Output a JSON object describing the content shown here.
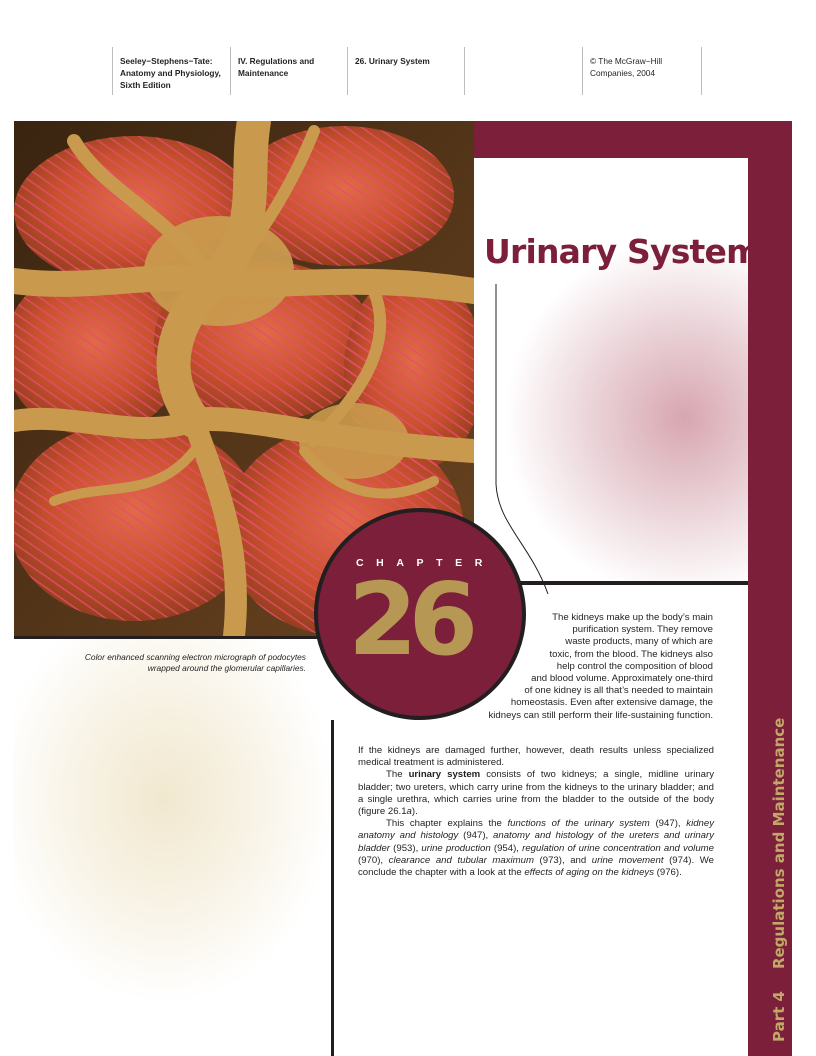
{
  "header": {
    "col1": [
      "Seeley−Stephens−Tate:",
      "Anatomy and Physiology,",
      "Sixth Edition"
    ],
    "col2": [
      "IV. Regulations and",
      "Maintenance"
    ],
    "col3": "26. Urinary System",
    "col4": "",
    "col5": [
      "© The McGraw−Hill",
      "Companies, 2004"
    ]
  },
  "chapter": {
    "title": "Urinary System",
    "label": "CHAPTER",
    "number": "26"
  },
  "caption": "Color enhanced scanning electron micrograph of podocytes wrapped around the glomerular capillaries.",
  "sidebar": {
    "part": "Part 4",
    "section": "Regulations and Maintenance"
  },
  "intro_lines": [
    "The kidneys make up the body’s main",
    "purification system. They remove",
    "waste products, many of which are",
    "toxic, from the blood. The kidneys also",
    "help control the composition of blood",
    "and blood volume. Approximately one-third",
    "of one kidney is all that’s needed to maintain",
    "homeostasis. Even after extensive damage, the",
    "kidneys can still perform their life-sustaining function."
  ],
  "para1_rest": "If the kidneys are damaged further, however, death results unless specialized medical treatment is administered.",
  "para2": {
    "pre": "The ",
    "term": "urinary system",
    "text": " consists of two kidneys; a single, midline urinary bladder; two ureters, which carry urine from the kidneys to the urinary bladder; and a single urethra, which carries urine from the bladder to the outside of the body (figure 26.1",
    "fig_letter": "a",
    "end": ")."
  },
  "para3": [
    {
      "t": "This chapter explains the ",
      "i": false
    },
    {
      "t": "functions of the urinary system",
      "i": true
    },
    {
      "t": " (947), ",
      "i": false
    },
    {
      "t": "kidney anatomy and histology",
      "i": true
    },
    {
      "t": " (947), ",
      "i": false
    },
    {
      "t": "anatomy and histology of the ureters and urinary bladder",
      "i": true
    },
    {
      "t": " (953), ",
      "i": false
    },
    {
      "t": "urine production",
      "i": true
    },
    {
      "t": " (954), ",
      "i": false
    },
    {
      "t": "regulation of urine concentration and volume",
      "i": true
    },
    {
      "t": " (970), ",
      "i": false
    },
    {
      "t": "clearance and tubular maximum",
      "i": true
    },
    {
      "t": " (973), and ",
      "i": false
    },
    {
      "t": "urine movement",
      "i": true
    },
    {
      "t": " (974). We conclude the chapter with a look at the ",
      "i": false
    },
    {
      "t": "effects of aging on the kidneys",
      "i": true
    },
    {
      "t": " (976).",
      "i": false
    }
  ],
  "colors": {
    "maroon": "#7b1f3a",
    "gold": "#b69753",
    "sidebar_text": "#c2a868"
  }
}
